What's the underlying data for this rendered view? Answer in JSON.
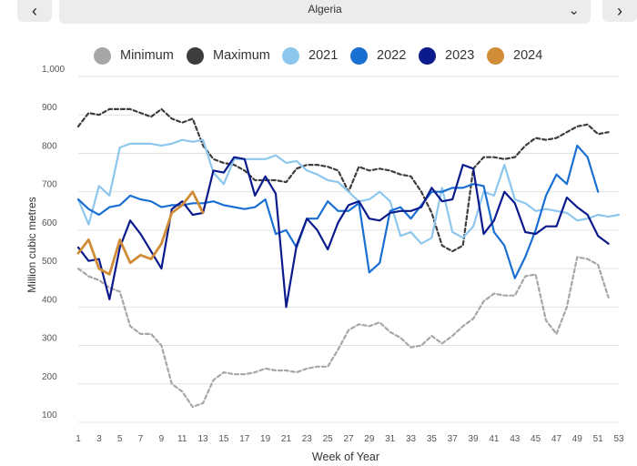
{
  "header": {
    "prev_icon": "chevron-left-icon",
    "prev_glyph": "‹",
    "next_icon": "chevron-right-icon",
    "next_glyph": "›",
    "region": "Algeria",
    "dropdown_icon": "chevron-down-icon",
    "dropdown_glyph": "⌄"
  },
  "chart_data": {
    "type": "line",
    "title": "",
    "xlabel": "Week of Year",
    "ylabel": "Million cubic metres",
    "xlim": [
      1,
      53
    ],
    "ylim": [
      100,
      1000
    ],
    "x_ticks": [
      1,
      3,
      5,
      7,
      9,
      11,
      13,
      15,
      17,
      19,
      21,
      23,
      25,
      27,
      29,
      31,
      33,
      35,
      37,
      39,
      41,
      43,
      45,
      47,
      49,
      51,
      53
    ],
    "y_ticks": [
      100,
      200,
      300,
      400,
      500,
      600,
      700,
      800,
      900,
      1000
    ],
    "y_tick_labels": [
      "100",
      "200",
      "300",
      "400",
      "500",
      "600",
      "700",
      "800",
      "900",
      "1,000"
    ],
    "grid": true,
    "legend_position": "top",
    "series": [
      {
        "name": "Minimum",
        "color": "#a6a6a6",
        "dash": "dashed",
        "x_start": 1,
        "values": [
          500,
          480,
          470,
          450,
          440,
          350,
          330,
          330,
          300,
          200,
          180,
          140,
          150,
          210,
          230,
          225,
          225,
          230,
          240,
          235,
          235,
          230,
          240,
          245,
          245,
          290,
          340,
          355,
          350,
          360,
          335,
          320,
          295,
          300,
          325,
          305,
          325,
          350,
          370,
          415,
          435,
          430,
          430,
          480,
          485,
          365,
          330,
          400,
          530,
          525,
          510,
          425
        ]
      },
      {
        "name": "Maximum",
        "color": "#3d3d3d",
        "dash": "dashed",
        "x_start": 1,
        "values": [
          870,
          905,
          900,
          915,
          915,
          915,
          905,
          895,
          915,
          890,
          880,
          890,
          820,
          785,
          775,
          770,
          755,
          730,
          730,
          730,
          725,
          760,
          770,
          770,
          765,
          755,
          700,
          765,
          755,
          760,
          755,
          745,
          740,
          700,
          645,
          560,
          545,
          560,
          760,
          790,
          790,
          785,
          790,
          820,
          840,
          835,
          840,
          855,
          870,
          875,
          850,
          855
        ]
      },
      {
        "name": "2021",
        "color": "#8ec7ee",
        "dash": "solid",
        "x_start": 1,
        "values": [
          680,
          615,
          715,
          690,
          815,
          825,
          825,
          825,
          820,
          825,
          835,
          830,
          835,
          750,
          720,
          785,
          785,
          785,
          785,
          795,
          775,
          780,
          755,
          745,
          730,
          725,
          700,
          675,
          680,
          700,
          675,
          585,
          595,
          565,
          580,
          710,
          595,
          580,
          610,
          700,
          690,
          770,
          680,
          670,
          650,
          655,
          650,
          645,
          625,
          630,
          640,
          635,
          640
        ]
      },
      {
        "name": "2022",
        "color": "#1a6fd3",
        "dash": "solid",
        "x_start": 1,
        "values": [
          680,
          655,
          640,
          660,
          665,
          690,
          680,
          675,
          660,
          665,
          665,
          670,
          670,
          675,
          665,
          660,
          655,
          660,
          680,
          590,
          600,
          555,
          630,
          630,
          675,
          650,
          650,
          670,
          490,
          515,
          650,
          660,
          630,
          665,
          700,
          700,
          710,
          710,
          720,
          715,
          595,
          560,
          475,
          530,
          600,
          690,
          745,
          720,
          820,
          790,
          700
        ]
      },
      {
        "name": "2023",
        "color": "#0b1a8c",
        "dash": "solid",
        "x_start": 1,
        "values": [
          555,
          520,
          525,
          420,
          555,
          625,
          590,
          545,
          500,
          655,
          675,
          640,
          645,
          755,
          750,
          790,
          785,
          690,
          740,
          695,
          400,
          560,
          630,
          600,
          550,
          620,
          665,
          675,
          630,
          625,
          645,
          650,
          650,
          660,
          710,
          675,
          680,
          770,
          760,
          590,
          625,
          700,
          670,
          595,
          590,
          610,
          610,
          685,
          660,
          640,
          585,
          565
        ]
      },
      {
        "name": "2024",
        "color": "#d08c36",
        "dash": "solid",
        "x_start": 1,
        "values": [
          540,
          575,
          500,
          485,
          575,
          515,
          535,
          525,
          565,
          645,
          665,
          700,
          645
        ]
      }
    ]
  }
}
